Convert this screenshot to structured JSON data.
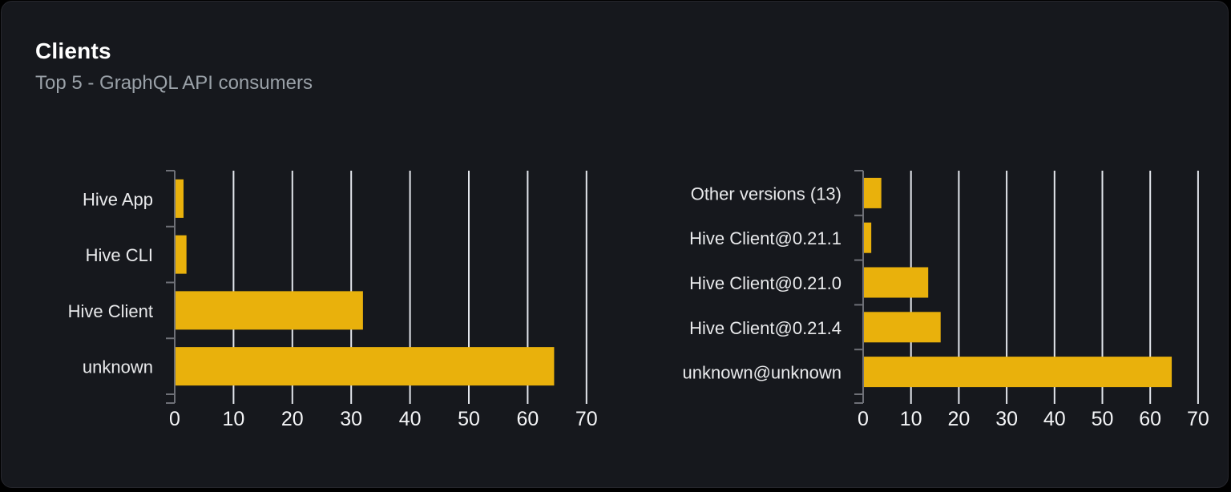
{
  "card": {
    "title": "Clients",
    "subtitle": "Top 5 - GraphQL API consumers"
  },
  "colors": {
    "card_bg": "#16181d",
    "card_border": "#26272d",
    "bar": "#e9b10c",
    "gridline": "#e3e6ec",
    "axis": "#6e7077",
    "title": "#ffffff",
    "subtitle": "#9aa1a8",
    "category_label": "#e9eaec",
    "tick_label": "#f4f5f7"
  },
  "chart_data": [
    {
      "type": "bar",
      "orientation": "horizontal",
      "name": "clients-by-name",
      "categories": [
        "Hive App",
        "Hive CLI",
        "Hive Client",
        "unknown"
      ],
      "values": [
        1.5,
        2,
        32,
        64.5
      ],
      "xlim": [
        0,
        70
      ],
      "ticks": [
        0,
        10,
        20,
        30,
        40,
        50,
        60,
        70
      ],
      "grid": true,
      "legend": false,
      "xlabel": "",
      "ylabel": ""
    },
    {
      "type": "bar",
      "orientation": "horizontal",
      "name": "clients-by-version",
      "categories": [
        "Other versions (13)",
        "Hive Client@0.21.1",
        "Hive Client@0.21.0",
        "Hive Client@0.21.4",
        "unknown@unknown"
      ],
      "values": [
        3.8,
        1.7,
        13.6,
        16.2,
        64.5
      ],
      "xlim": [
        0,
        70
      ],
      "ticks": [
        0,
        10,
        20,
        30,
        40,
        50,
        60,
        70
      ],
      "grid": true,
      "legend": false,
      "xlabel": "",
      "ylabel": ""
    }
  ]
}
